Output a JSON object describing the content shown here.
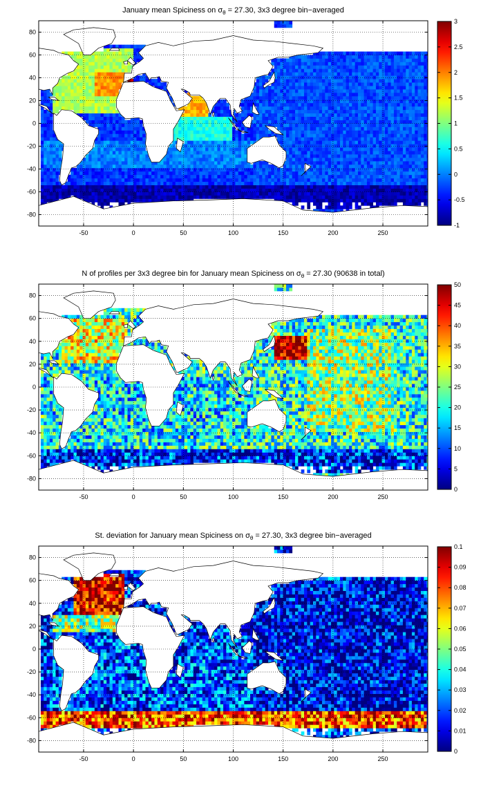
{
  "chart_data": [
    {
      "type": "heatmap",
      "title": "January mean Spiciness on σθ = 27.30, 3x3 degree bin−averaged",
      "title_parts": [
        "January mean Spiciness on σ",
        "θ",
        " = 27.30, 3x3 degree bin−averaged"
      ],
      "xlim": [
        -95,
        295
      ],
      "ylim": [
        -90,
        90
      ],
      "xticks": [
        -50,
        0,
        50,
        100,
        150,
        200,
        250
      ],
      "yticks": [
        80,
        60,
        40,
        20,
        0,
        -20,
        -40,
        -60,
        -80
      ],
      "colorbar": {
        "min": -1,
        "max": 3,
        "ticks": [
          "3",
          "2.5",
          "2",
          "1.5",
          "1",
          "0.5",
          "0",
          "-0.5",
          "-1"
        ]
      },
      "grid": true,
      "regions": [
        {
          "x": [
            -80,
            0
          ],
          "y": [
            10,
            65
          ],
          "value": 1.2
        },
        {
          "x": [
            -40,
            -10
          ],
          "y": [
            25,
            45
          ],
          "value": 1.9
        },
        {
          "x": [
            -10,
            0
          ],
          "y": [
            33,
            42
          ],
          "value": 2.9
        },
        {
          "x": [
            42,
            75
          ],
          "y": [
            5,
            28
          ],
          "value": 1.8
        },
        {
          "x": [
            40,
            100
          ],
          "y": [
            -15,
            5
          ],
          "value": 0.6
        },
        {
          "x": [
            -90,
            120
          ],
          "y": [
            -40,
            -15
          ],
          "value": 0.0
        },
        {
          "x": [
            120,
            290
          ],
          "y": [
            -55,
            60
          ],
          "value": -0.2
        },
        {
          "x": [
            -95,
            295
          ],
          "y": [
            -75,
            -55
          ],
          "value": -0.8
        }
      ]
    },
    {
      "type": "heatmap",
      "title": "N of profiles per 3x3 degree bin for January mean Spiciness on σθ = 27.30 (90638 in total)",
      "title_parts": [
        "N of profiles per 3x3 degree bin for January mean Spiciness on σ",
        "θ",
        " = 27.30 (90638 in total)"
      ],
      "xlim": [
        -95,
        295
      ],
      "ylim": [
        -90,
        90
      ],
      "xticks": [
        -50,
        0,
        50,
        100,
        150,
        200,
        250
      ],
      "yticks": [
        80,
        60,
        40,
        20,
        0,
        -20,
        -40,
        -60,
        -80
      ],
      "colorbar": {
        "min": 0,
        "max": 50,
        "ticks": [
          "50",
          "45",
          "40",
          "35",
          "30",
          "25",
          "20",
          "15",
          "10",
          "5",
          "0"
        ]
      },
      "grid": true,
      "total_profiles": 90638,
      "regions": [
        {
          "x": [
            -75,
            -5
          ],
          "y": [
            20,
            60
          ],
          "value": 30
        },
        {
          "x": [
            140,
            175
          ],
          "y": [
            25,
            45
          ],
          "value": 48
        },
        {
          "x": [
            175,
            260
          ],
          "y": [
            -40,
            50
          ],
          "value": 26
        },
        {
          "x": [
            -90,
            120
          ],
          "y": [
            -50,
            10
          ],
          "value": 18
        },
        {
          "x": [
            -95,
            295
          ],
          "y": [
            -75,
            -55
          ],
          "value": 8
        }
      ]
    },
    {
      "type": "heatmap",
      "title": "St. deviation for January mean Spiciness on σθ = 27.30, 3x3 degree bin−averaged",
      "title_parts": [
        "St. deviation for January mean Spiciness on σ",
        "θ",
        " = 27.30, 3x3 degree bin−averaged"
      ],
      "xlim": [
        -95,
        295
      ],
      "ylim": [
        -90,
        90
      ],
      "xticks": [
        -50,
        0,
        50,
        100,
        150,
        200,
        250
      ],
      "yticks": [
        80,
        60,
        40,
        20,
        0,
        -20,
        -40,
        -60,
        -80
      ],
      "colorbar": {
        "min": 0,
        "max": 0.1,
        "ticks": [
          "0.1",
          "0.09",
          "0.08",
          "0.07",
          "0.06",
          "0.05",
          "0.04",
          "0.03",
          "0.02",
          "0.01",
          "0"
        ]
      },
      "grid": true,
      "regions": [
        {
          "x": [
            -60,
            -10
          ],
          "y": [
            30,
            65
          ],
          "value": 0.09
        },
        {
          "x": [
            -80,
            -5
          ],
          "y": [
            15,
            30
          ],
          "value": 0.05
        },
        {
          "x": [
            40,
            80
          ],
          "y": [
            -45,
            10
          ],
          "value": 0.04
        },
        {
          "x": [
            -95,
            295
          ],
          "y": [
            -68,
            -55
          ],
          "value": 0.08
        },
        {
          "x": [
            -80,
            120
          ],
          "y": [
            -50,
            10
          ],
          "value": 0.02
        },
        {
          "x": [
            120,
            290
          ],
          "y": [
            -55,
            60
          ],
          "value": 0.01
        }
      ]
    }
  ]
}
